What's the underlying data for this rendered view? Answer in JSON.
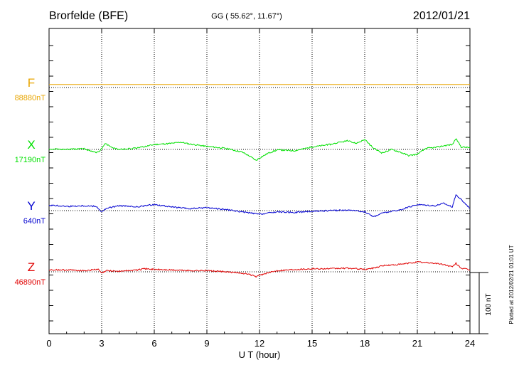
{
  "header": {
    "station": "Brorfelde (BFE)",
    "coords": "GG ( 55.62°,  11.67°)",
    "date": "2012/01/21"
  },
  "footer_note": "Plotted at 2012/02/21 01:01 UT",
  "scale_label": "100 nT",
  "colors": {
    "F": "#e8a500",
    "X": "#00e000",
    "Y": "#0000d0",
    "Z": "#e00000",
    "axis": "#000000"
  },
  "chart_data": {
    "type": "line",
    "xlabel": "U T (hour)",
    "xlim": [
      0,
      24
    ],
    "x_ticks": [
      0,
      3,
      6,
      9,
      12,
      15,
      18,
      21,
      24
    ],
    "x_tick_labels": [
      "0",
      "3",
      "6",
      "9",
      "12",
      "15",
      "18",
      "21",
      "24"
    ],
    "scale_bar_nT": 100,
    "grid": "dotted vertical at every 3 hours, dotted horizontal baseline per component",
    "series": [
      {
        "name": "F",
        "baseline_label": "88880nT",
        "baseline_nT": 88880,
        "x": [
          0,
          3,
          6,
          9,
          12,
          15,
          18,
          21,
          24
        ],
        "values": [
          5,
          5,
          5,
          5,
          5,
          5,
          5,
          5,
          5
        ]
      },
      {
        "name": "X",
        "baseline_label": "17190nT",
        "baseline_nT": 17190,
        "x": [
          0,
          1,
          2,
          2.7,
          2.9,
          3.2,
          3.5,
          4,
          4.5,
          5,
          6,
          7,
          7.5,
          8,
          9,
          10,
          11,
          11.5,
          11.8,
          12,
          12.5,
          13,
          14,
          15,
          16,
          17,
          17.5,
          18,
          18.5,
          19,
          19.5,
          20,
          20.5,
          21,
          21.5,
          22,
          22.5,
          23,
          23.2,
          23.5,
          24
        ],
        "values": [
          1,
          0,
          1,
          -5,
          -3,
          10,
          4,
          0,
          1,
          2,
          8,
          10,
          12,
          9,
          5,
          2,
          -4,
          -12,
          -18,
          -14,
          -6,
          -1,
          -2,
          4,
          8,
          14,
          10,
          16,
          2,
          -6,
          0,
          -4,
          -10,
          -8,
          2,
          3,
          6,
          8,
          18,
          4,
          3
        ]
      },
      {
        "name": "Y",
        "baseline_label": "640nT",
        "baseline_nT": 640,
        "x": [
          0,
          1,
          2,
          2.7,
          3,
          3.3,
          4,
          5,
          6,
          7,
          8,
          9,
          10,
          11,
          12,
          12.5,
          13,
          14,
          15,
          16,
          17,
          18,
          18.5,
          19,
          20,
          21,
          22,
          22.5,
          23,
          23.2,
          23.5,
          24
        ],
        "values": [
          9,
          7,
          8,
          7,
          -2,
          4,
          8,
          6,
          10,
          6,
          3,
          5,
          2,
          -2,
          -6,
          -4,
          -2,
          -3,
          -1,
          0,
          1,
          -2,
          -10,
          -4,
          1,
          10,
          8,
          12,
          6,
          26,
          18,
          4
        ]
      },
      {
        "name": "Z",
        "baseline_label": "46890nT",
        "baseline_nT": 46890,
        "x": [
          0,
          1,
          2,
          2.8,
          3,
          3.3,
          4,
          5,
          5.5,
          6,
          7,
          8,
          9,
          10,
          11,
          11.5,
          11.8,
          12.2,
          13,
          14,
          15,
          16,
          17,
          18,
          18.5,
          19,
          20,
          21,
          22,
          22.5,
          23,
          23.2,
          23.5,
          24
        ],
        "values": [
          3,
          3,
          2,
          4,
          -2,
          2,
          1,
          3,
          5,
          4,
          3,
          2,
          2,
          0,
          -2,
          -5,
          -8,
          -4,
          2,
          4,
          5,
          5,
          6,
          4,
          6,
          10,
          12,
          16,
          14,
          12,
          8,
          14,
          6,
          3
        ]
      }
    ]
  }
}
